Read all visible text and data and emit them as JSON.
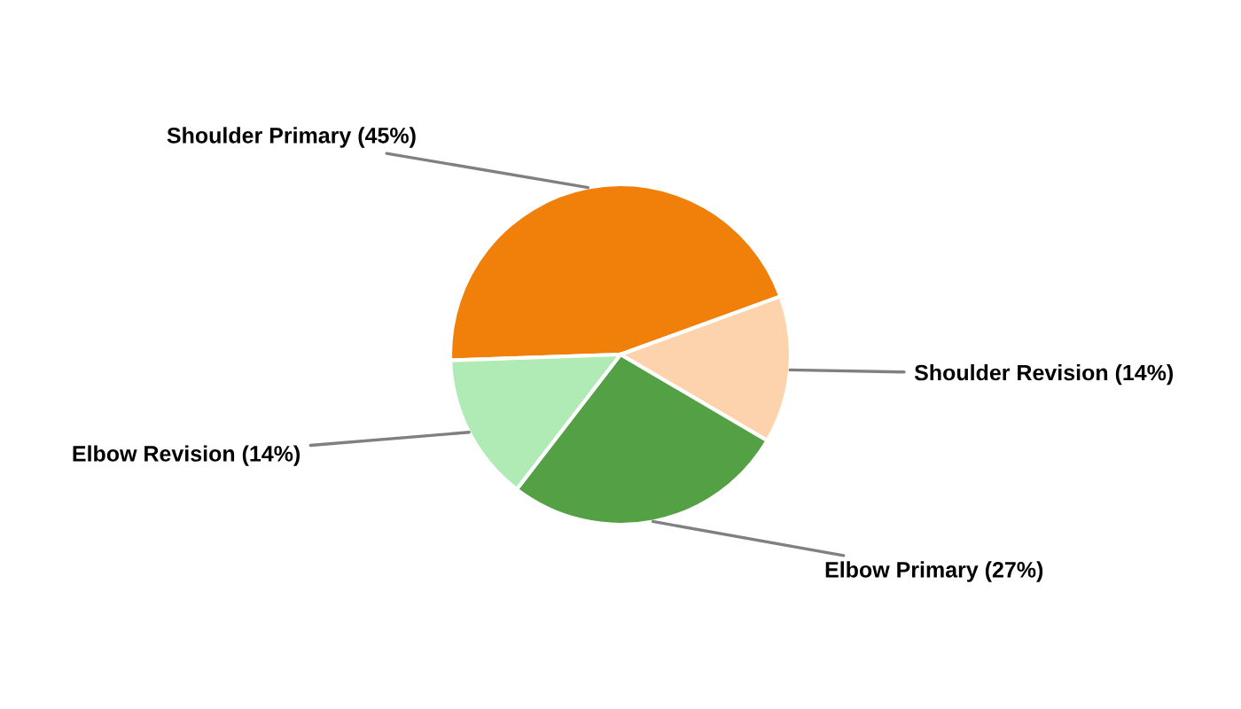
{
  "chart_data": {
    "type": "pie",
    "categories": [
      "Shoulder Primary (45%)",
      "Shoulder Revision (14%)",
      "Elbow Primary (27%)",
      "Elbow Revision (14%)"
    ],
    "values": [
      45,
      14,
      27,
      14
    ],
    "colors": [
      "#f0800a",
      "#fdd3ad",
      "#53a045",
      "#b0eab5"
    ]
  }
}
